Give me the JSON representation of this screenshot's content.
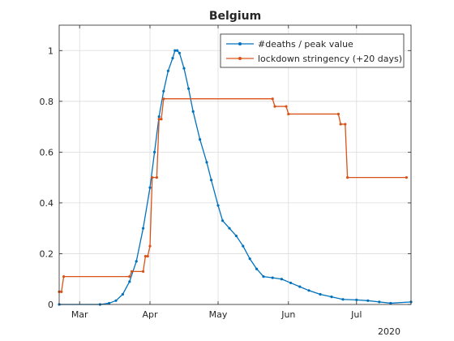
{
  "chart_data": {
    "type": "line",
    "title": "Belgium",
    "xlabel": "",
    "ylabel": "",
    "x_axis": {
      "kind": "date",
      "xlim": [
        "2020-02-21",
        "2020-07-25"
      ],
      "year_label": "2020",
      "ticks": [
        {
          "date": "2020-03-01",
          "label": "Mar"
        },
        {
          "date": "2020-04-01",
          "label": "Apr"
        },
        {
          "date": "2020-05-01",
          "label": "May"
        },
        {
          "date": "2020-06-01",
          "label": "Jun"
        },
        {
          "date": "2020-07-01",
          "label": "Jul"
        }
      ]
    },
    "y_axis": {
      "ylim": [
        0,
        1.1
      ],
      "ticks": [
        {
          "value": 0,
          "label": "0"
        },
        {
          "value": 0.2,
          "label": "0.2"
        },
        {
          "value": 0.4,
          "label": "0.4"
        },
        {
          "value": 0.6,
          "label": "0.6"
        },
        {
          "value": 0.8,
          "label": "0.8"
        },
        {
          "value": 1,
          "label": "1"
        }
      ]
    },
    "grid": true,
    "legend_position": "top-right",
    "series": [
      {
        "name": "#deaths / peak value",
        "color": "#0072BD",
        "points": [
          [
            "2020-02-21",
            0
          ],
          [
            "2020-03-10",
            0
          ],
          [
            "2020-03-14",
            0.005
          ],
          [
            "2020-03-17",
            0.015
          ],
          [
            "2020-03-20",
            0.04
          ],
          [
            "2020-03-23",
            0.09
          ],
          [
            "2020-03-26",
            0.17
          ],
          [
            "2020-03-29",
            0.3
          ],
          [
            "2020-04-01",
            0.46
          ],
          [
            "2020-04-03",
            0.6
          ],
          [
            "2020-04-05",
            0.74
          ],
          [
            "2020-04-07",
            0.84
          ],
          [
            "2020-04-09",
            0.92
          ],
          [
            "2020-04-11",
            0.97
          ],
          [
            "2020-04-12",
            1.0
          ],
          [
            "2020-04-13",
            1.0
          ],
          [
            "2020-04-14",
            0.99
          ],
          [
            "2020-04-16",
            0.93
          ],
          [
            "2020-04-18",
            0.85
          ],
          [
            "2020-04-20",
            0.76
          ],
          [
            "2020-04-23",
            0.65
          ],
          [
            "2020-04-26",
            0.56
          ],
          [
            "2020-04-28",
            0.49
          ],
          [
            "2020-05-01",
            0.39
          ],
          [
            "2020-05-03",
            0.33
          ],
          [
            "2020-05-06",
            0.3
          ],
          [
            "2020-05-09",
            0.27
          ],
          [
            "2020-05-12",
            0.23
          ],
          [
            "2020-05-15",
            0.18
          ],
          [
            "2020-05-18",
            0.14
          ],
          [
            "2020-05-21",
            0.11
          ],
          [
            "2020-05-25",
            0.105
          ],
          [
            "2020-05-29",
            0.1
          ],
          [
            "2020-06-02",
            0.085
          ],
          [
            "2020-06-06",
            0.07
          ],
          [
            "2020-06-10",
            0.055
          ],
          [
            "2020-06-15",
            0.04
          ],
          [
            "2020-06-20",
            0.03
          ],
          [
            "2020-06-25",
            0.02
          ],
          [
            "2020-07-01",
            0.018
          ],
          [
            "2020-07-06",
            0.015
          ],
          [
            "2020-07-11",
            0.01
          ],
          [
            "2020-07-16",
            0.005
          ],
          [
            "2020-07-25",
            0.01
          ]
        ]
      },
      {
        "name": "lockdown stringency (+20 days)",
        "color": "#D95319",
        "points": [
          [
            "2020-02-21",
            0.05
          ],
          [
            "2020-02-22",
            0.05
          ],
          [
            "2020-02-23",
            0.11
          ],
          [
            "2020-03-23",
            0.11
          ],
          [
            "2020-03-24",
            0.13
          ],
          [
            "2020-03-29",
            0.13
          ],
          [
            "2020-03-30",
            0.19
          ],
          [
            "2020-03-31",
            0.19
          ],
          [
            "2020-04-01",
            0.23
          ],
          [
            "2020-04-02",
            0.5
          ],
          [
            "2020-04-04",
            0.5
          ],
          [
            "2020-04-05",
            0.73
          ],
          [
            "2020-04-06",
            0.73
          ],
          [
            "2020-04-07",
            0.81
          ],
          [
            "2020-05-25",
            0.81
          ],
          [
            "2020-05-26",
            0.78
          ],
          [
            "2020-05-31",
            0.78
          ],
          [
            "2020-06-01",
            0.75
          ],
          [
            "2020-06-23",
            0.75
          ],
          [
            "2020-06-24",
            0.71
          ],
          [
            "2020-06-26",
            0.71
          ],
          [
            "2020-06-27",
            0.5
          ],
          [
            "2020-07-23",
            0.5
          ]
        ]
      }
    ]
  }
}
